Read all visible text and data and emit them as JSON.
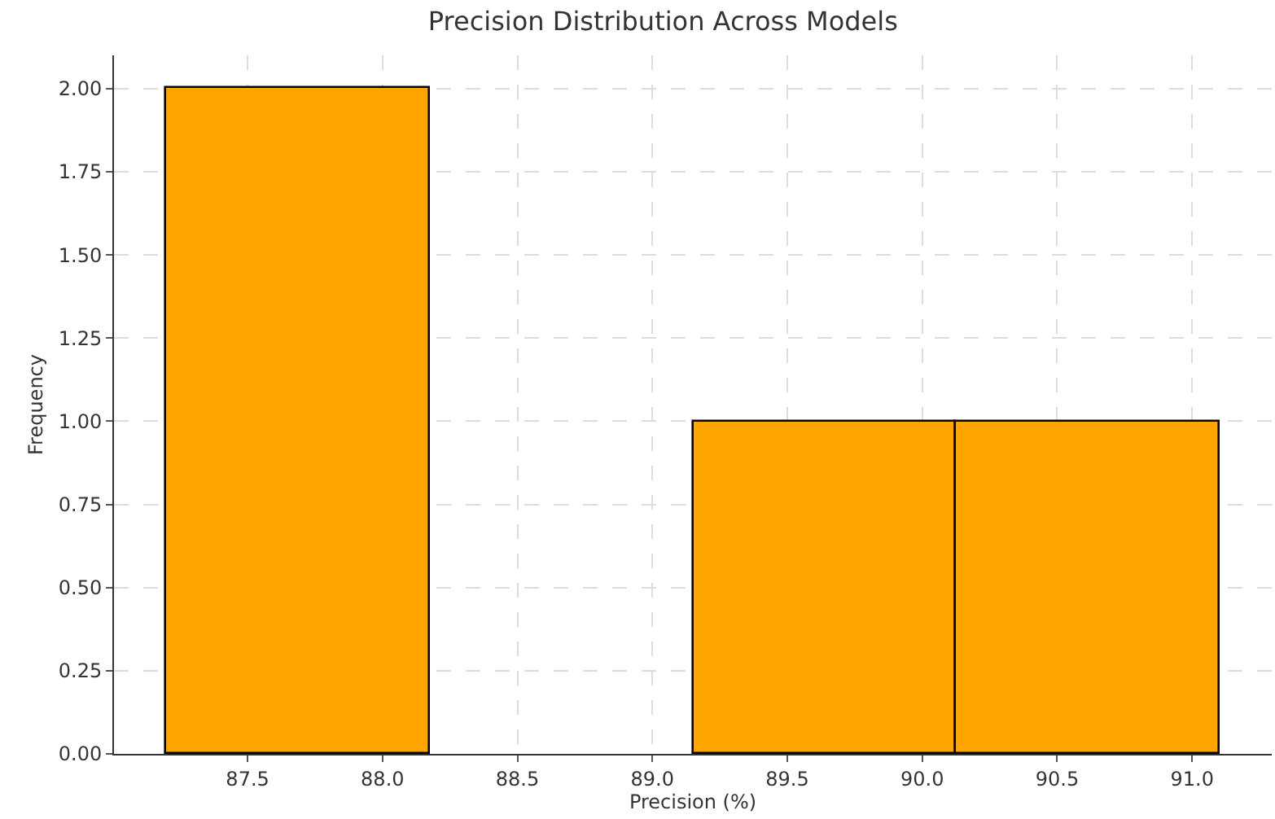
{
  "chart_data": {
    "type": "histogram",
    "title": "Precision Distribution Across Models",
    "xlabel": "Precision (%)",
    "ylabel": "Frequency",
    "bins": [
      87.2,
      88.175,
      89.15,
      90.125,
      91.1
    ],
    "values": [
      2,
      0,
      1,
      1
    ],
    "color": "#ffa500",
    "xlim": [
      87.005,
      91.295
    ],
    "xticks": [
      {
        "value": 87.5,
        "label": "87.5"
      },
      {
        "value": 88,
        "label": "88.0"
      },
      {
        "value": 88.5,
        "label": "88.5"
      },
      {
        "value": 89,
        "label": "89.0"
      },
      {
        "value": 89.5,
        "label": "89.5"
      },
      {
        "value": 90,
        "label": "90.0"
      },
      {
        "value": 90.5,
        "label": "90.5"
      },
      {
        "value": 91,
        "label": "91.0"
      }
    ],
    "ylim": [
      0,
      2.1
    ],
    "yticks": [
      {
        "value": 0,
        "label": "0.00"
      },
      {
        "value": 0.25,
        "label": "0.25"
      },
      {
        "value": 0.5,
        "label": "0.50"
      },
      {
        "value": 0.75,
        "label": "0.75"
      },
      {
        "value": 1,
        "label": "1.00"
      },
      {
        "value": 1.25,
        "label": "1.25"
      },
      {
        "value": 1.5,
        "label": "1.50"
      },
      {
        "value": 1.75,
        "label": "1.75"
      },
      {
        "value": 2,
        "label": "2.00"
      }
    ],
    "grid": true
  }
}
